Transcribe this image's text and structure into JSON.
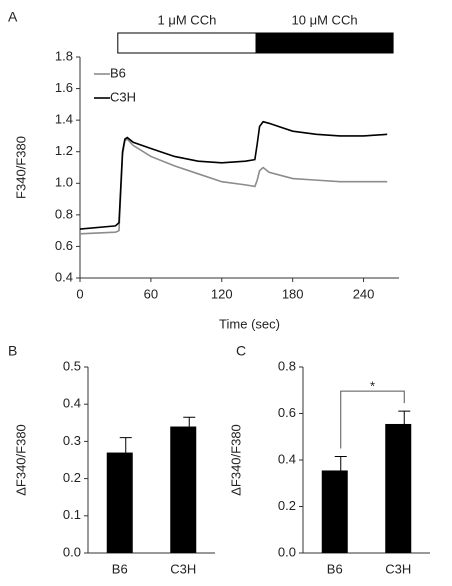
{
  "chart_data": [
    {
      "type": "line",
      "panel": "A",
      "xlabel": "Time (sec)",
      "ylabel": "F340/F380",
      "xlim": [
        0,
        270
      ],
      "xticks": [
        0,
        60,
        120,
        180,
        240
      ],
      "ylim": [
        0.4,
        1.8
      ],
      "yticks": [
        0.4,
        0.6,
        0.8,
        {
          "value": 1,
          "label": "1.0"
        },
        1.2,
        1.4,
        1.6,
        1.8
      ],
      "stimuli": [
        {
          "label": "1 μM CCh",
          "start": 32,
          "end": 149,
          "fill": "#ffffff"
        },
        {
          "label": "10 μM CCh",
          "start": 149,
          "end": 265,
          "fill": "#000000"
        }
      ],
      "x": [
        0,
        30,
        33,
        36,
        38,
        40,
        45,
        60,
        80,
        100,
        120,
        140,
        148,
        150,
        152,
        155,
        160,
        180,
        200,
        220,
        240,
        260
      ],
      "series": [
        {
          "name": "B6",
          "color": "#8c8c8c",
          "values": [
            0.68,
            0.69,
            0.7,
            1.18,
            1.27,
            1.28,
            1.24,
            1.17,
            1.11,
            1.06,
            1.01,
            0.99,
            0.98,
            1.02,
            1.08,
            1.1,
            1.07,
            1.03,
            1.02,
            1.01,
            1.01,
            1.01
          ]
        },
        {
          "name": "C3H",
          "color": "#000000",
          "values": [
            0.71,
            0.73,
            0.75,
            1.2,
            1.28,
            1.29,
            1.26,
            1.22,
            1.17,
            1.14,
            1.13,
            1.14,
            1.15,
            1.25,
            1.36,
            1.39,
            1.38,
            1.33,
            1.31,
            1.3,
            1.3,
            1.31
          ]
        }
      ]
    },
    {
      "type": "bar",
      "panel": "B",
      "ylabel": "ΔF340/F380",
      "ylim": [
        0,
        0.5
      ],
      "yticks": [
        {
          "value": 0,
          "label": "0.0"
        },
        0.1,
        0.2,
        0.3,
        0.4,
        0.5
      ],
      "categories": [
        "B6",
        "C3H"
      ],
      "values": [
        0.27,
        0.34
      ],
      "errors": [
        0.04,
        0.025
      ],
      "color": "#000000"
    },
    {
      "type": "bar",
      "panel": "C",
      "ylabel": "ΔF340/F380",
      "ylim": [
        0,
        0.8
      ],
      "yticks": [
        {
          "value": 0,
          "label": "0.0"
        },
        0.2,
        0.4,
        0.6,
        0.8
      ],
      "categories": [
        "B6",
        "C3H"
      ],
      "values": [
        0.355,
        0.555
      ],
      "errors": [
        0.06,
        0.055
      ],
      "color": "#000000",
      "significance": "*"
    }
  ]
}
